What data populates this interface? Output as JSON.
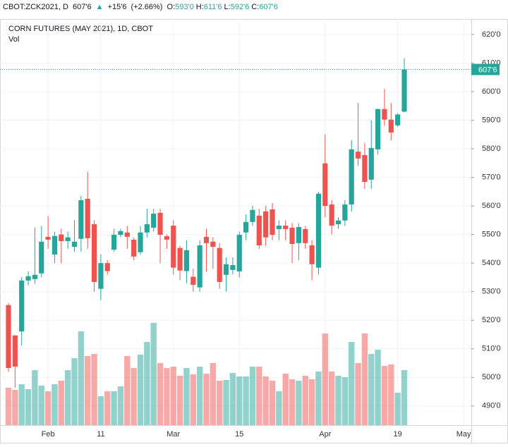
{
  "chart_data": {
    "type": "candlestick",
    "header": {
      "symbol": "CBOT:ZCK2021, D",
      "last": {
        "value": 607.75,
        "label": "607'6"
      },
      "arrow": "▲",
      "change": {
        "value": 15.75,
        "label": "+15'6"
      },
      "change_pct": {
        "value": 2.66,
        "label": "(+2.66%)"
      },
      "fields": [
        {
          "key": "O:",
          "value": 593,
          "label": "593'0"
        },
        {
          "key": "H:",
          "value": 611.75,
          "label": "611'6"
        },
        {
          "key": "L:",
          "value": 592.75,
          "label": "592'6"
        },
        {
          "key": "C:",
          "value": 607.75,
          "label": "607'6"
        }
      ]
    },
    "title": "CORN FUTURES (MAY 2021), 1D, CBOT",
    "volume_label": "Vol",
    "categories": [
      null,
      null,
      null,
      null,
      null,
      null,
      "Feb",
      null,
      null,
      null,
      null,
      null,
      null,
      null,
      "11",
      null,
      null,
      null,
      null,
      null,
      null,
      null,
      null,
      null,
      null,
      "Mar",
      null,
      null,
      null,
      null,
      null,
      null,
      null,
      null,
      null,
      "15",
      null,
      null,
      null,
      null,
      null,
      null,
      null,
      null,
      null,
      null,
      null,
      null,
      "Apr",
      null,
      null,
      null,
      null,
      null,
      null,
      null,
      null,
      null,
      null,
      "19",
      null,
      null,
      null,
      null,
      null,
      null,
      null,
      null,
      null,
      "May"
    ],
    "open": [
      525.3,
      514.7,
      516.1,
      533.9,
      534.4,
      536.4,
      549.2,
      543,
      550,
      547.7,
      545.7,
      548.5,
      562.5,
      553.6,
      531,
      540,
      544.7,
      549.9,
      550.7,
      548.2,
      543.8,
      550.7,
      552.4,
      557.6,
      549.4,
      553.1,
      545.3,
      537.2,
      535.2,
      531.5,
      549.2,
      547.5,
      545.3,
      535.9,
      537.6,
      537.1,
      550.7,
      554.4,
      556.6,
      558.1,
      558.8,
      551.9,
      553.1,
      552.4,
      547,
      551.9,
      546.2,
      538.4,
      574.9,
      560.5,
      553.6,
      554.9,
      560.5,
      579,
      577.8,
      569.2,
      579.8,
      593.9,
      590.2,
      588.2,
      593,
      null,
      null,
      null,
      null,
      null,
      null,
      null,
      null,
      null
    ],
    "high": [
      526,
      514.7,
      535.1,
      537.1,
      552.4,
      553,
      556.4,
      551,
      552,
      551,
      555,
      563.5,
      572,
      555,
      543,
      541,
      552,
      552,
      553,
      549,
      553,
      559,
      559,
      559,
      550,
      555,
      546,
      548,
      538,
      548,
      552,
      549,
      547,
      542,
      542,
      551,
      557,
      560,
      559,
      560,
      561,
      555,
      555,
      554,
      554,
      553,
      548,
      565,
      585,
      562,
      556,
      562,
      583,
      596,
      582,
      590,
      594,
      601,
      596,
      592.5,
      611.75,
      null,
      null,
      null,
      null,
      null,
      null,
      null,
      null,
      null
    ],
    "low": [
      502,
      496.4,
      511.2,
      532.2,
      532.7,
      535,
      545,
      540,
      540,
      545,
      544,
      544,
      545,
      530,
      527,
      536,
      544,
      549,
      545,
      541,
      543,
      549,
      551,
      540,
      545,
      536,
      534,
      533,
      530,
      530,
      537,
      538,
      531,
      530,
      536,
      535,
      548,
      553,
      545,
      546,
      548,
      548,
      548,
      540,
      541,
      545,
      534,
      536,
      556,
      550,
      552,
      553,
      558,
      574,
      566,
      566,
      578,
      588,
      583,
      587.7,
      592.75,
      null,
      null,
      null,
      null,
      null,
      null,
      null,
      null,
      null
    ],
    "close": [
      503.3,
      503.8,
      533.9,
      535.4,
      535.9,
      547.5,
      548.2,
      549.5,
      547.7,
      549,
      547.5,
      562,
      548.7,
      533.4,
      540,
      537.2,
      549.9,
      551.2,
      549.2,
      542.3,
      550.7,
      553.6,
      557.3,
      549.9,
      548.2,
      538.4,
      537.4,
      544.5,
      532.4,
      546.2,
      547,
      545.7,
      533.4,
      539.6,
      539.3,
      549.9,
      554.4,
      558.6,
      546.2,
      549,
      549.9,
      553.1,
      551.9,
      546.7,
      552.6,
      547,
      539.6,
      564.3,
      560,
      553.1,
      554.9,
      560.5,
      579.8,
      576.6,
      568.4,
      580.3,
      593.9,
      590.2,
      585.7,
      592,
      607.75,
      null,
      null,
      null,
      null,
      null,
      null,
      null,
      null,
      null
    ],
    "volume": [
      53,
      50,
      58,
      51,
      78,
      56,
      48,
      58,
      63,
      78,
      95,
      133,
      98,
      101,
      41,
      48,
      48,
      55,
      98,
      81,
      100,
      118,
      145,
      88,
      81,
      83,
      70,
      81,
      72,
      83,
      73,
      88,
      63,
      64,
      74,
      69,
      69,
      83,
      83,
      69,
      63,
      48,
      73,
      65,
      63,
      70,
      65,
      76,
      130,
      76,
      70,
      68,
      118,
      88,
      130,
      101,
      107,
      84,
      86,
      46,
      78,
      null,
      null,
      null,
      null,
      null,
      null,
      null,
      null,
      null
    ],
    "up_color": "#26a69a",
    "down_color": "#ef5350",
    "ylim": [
      483.3,
      625.4
    ],
    "yticks": [
      {
        "value": 490,
        "label": "490'0"
      },
      {
        "value": 500,
        "label": "500'0"
      },
      {
        "value": 510,
        "label": "510'0"
      },
      {
        "value": 520,
        "label": "520'0"
      },
      {
        "value": 530,
        "label": "530'0"
      },
      {
        "value": 540,
        "label": "540'0"
      },
      {
        "value": 550,
        "label": "550'0"
      },
      {
        "value": 560,
        "label": "560'0"
      },
      {
        "value": 570,
        "label": "570'0"
      },
      {
        "value": 580,
        "label": "580'0"
      },
      {
        "value": 590,
        "label": "590'0"
      },
      {
        "value": 600,
        "label": "600'0"
      },
      {
        "value": 610,
        "label": "610'0"
      },
      {
        "value": 620,
        "label": "620'0"
      }
    ],
    "grid": true
  }
}
